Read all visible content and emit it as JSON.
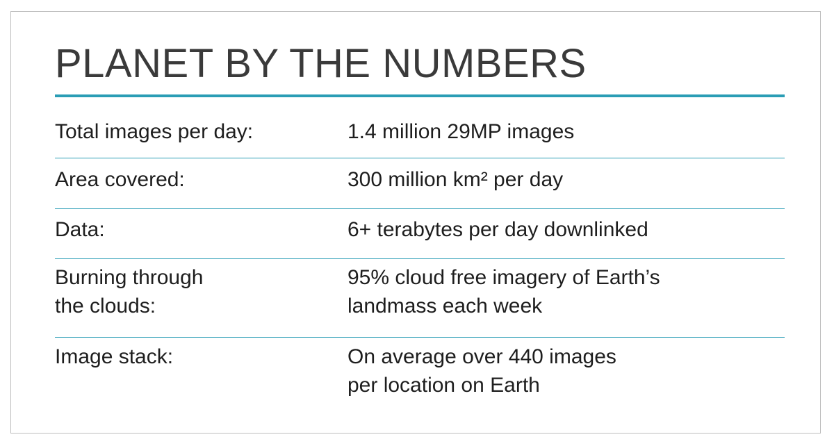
{
  "title": "PLANET BY THE NUMBERS",
  "colors": {
    "accent": "#2a9db5",
    "text": "#1e1e1e",
    "title": "#3a3a3a",
    "border": "#bdbdbd"
  },
  "rows": [
    {
      "label": "Total images per day:",
      "value": "1.4 million 29MP images"
    },
    {
      "label": "Area covered:",
      "value": "300 million km² per day"
    },
    {
      "label": "Data:",
      "value": "6+ terabytes per day downlinked"
    },
    {
      "label": "Burning through\nthe clouds:",
      "value": "95% cloud free imagery of Earth’s\nlandmass each week"
    },
    {
      "label": "Image stack:",
      "value": "On average over 440 images\nper location on Earth"
    }
  ]
}
